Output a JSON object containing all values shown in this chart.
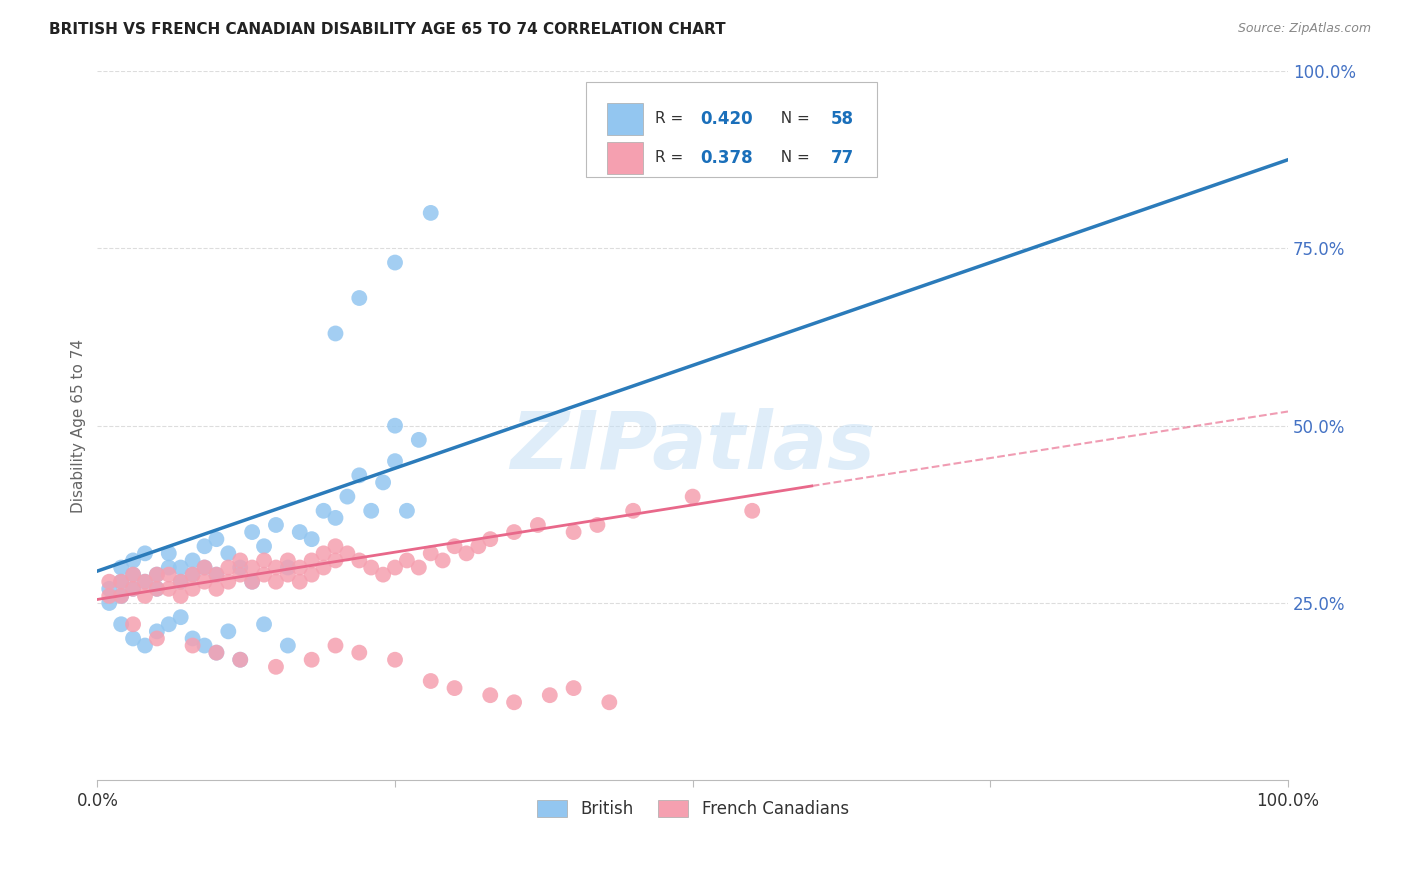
{
  "title": "BRITISH VS FRENCH CANADIAN DISABILITY AGE 65 TO 74 CORRELATION CHART",
  "source": "Source: ZipAtlas.com",
  "ylabel": "Disability Age 65 to 74",
  "R_british": 0.42,
  "N_british": 58,
  "R_french": 0.378,
  "N_french": 77,
  "color_british": "#93c6f0",
  "color_french": "#f5a0b0",
  "color_british_line": "#2b7bba",
  "color_french_line": "#e8688a",
  "watermark": "ZIPatlas",
  "british_x": [
    0.01,
    0.01,
    0.02,
    0.02,
    0.02,
    0.03,
    0.03,
    0.03,
    0.04,
    0.04,
    0.05,
    0.05,
    0.06,
    0.06,
    0.07,
    0.07,
    0.08,
    0.08,
    0.09,
    0.09,
    0.1,
    0.1,
    0.11,
    0.12,
    0.13,
    0.13,
    0.14,
    0.15,
    0.16,
    0.17,
    0.18,
    0.19,
    0.2,
    0.21,
    0.22,
    0.23,
    0.24,
    0.25,
    0.26,
    0.27,
    0.02,
    0.03,
    0.04,
    0.05,
    0.06,
    0.07,
    0.08,
    0.09,
    0.1,
    0.11,
    0.12,
    0.14,
    0.16,
    0.2,
    0.22,
    0.25,
    0.25,
    0.28
  ],
  "british_y": [
    0.25,
    0.27,
    0.28,
    0.3,
    0.26,
    0.27,
    0.29,
    0.31,
    0.28,
    0.32,
    0.27,
    0.29,
    0.3,
    0.32,
    0.28,
    0.3,
    0.29,
    0.31,
    0.3,
    0.33,
    0.29,
    0.34,
    0.32,
    0.3,
    0.35,
    0.28,
    0.33,
    0.36,
    0.3,
    0.35,
    0.34,
    0.38,
    0.37,
    0.4,
    0.43,
    0.38,
    0.42,
    0.45,
    0.38,
    0.48,
    0.22,
    0.2,
    0.19,
    0.21,
    0.22,
    0.23,
    0.2,
    0.19,
    0.18,
    0.21,
    0.17,
    0.22,
    0.19,
    0.63,
    0.68,
    0.73,
    0.5,
    0.8
  ],
  "french_x": [
    0.01,
    0.01,
    0.02,
    0.02,
    0.03,
    0.03,
    0.04,
    0.04,
    0.05,
    0.05,
    0.06,
    0.06,
    0.07,
    0.07,
    0.08,
    0.08,
    0.09,
    0.09,
    0.1,
    0.1,
    0.11,
    0.11,
    0.12,
    0.12,
    0.13,
    0.13,
    0.14,
    0.14,
    0.15,
    0.15,
    0.16,
    0.16,
    0.17,
    0.17,
    0.18,
    0.18,
    0.19,
    0.19,
    0.2,
    0.2,
    0.21,
    0.22,
    0.23,
    0.24,
    0.25,
    0.26,
    0.27,
    0.28,
    0.29,
    0.3,
    0.31,
    0.32,
    0.33,
    0.35,
    0.37,
    0.4,
    0.42,
    0.45,
    0.5,
    0.55,
    0.03,
    0.05,
    0.08,
    0.1,
    0.12,
    0.15,
    0.18,
    0.2,
    0.22,
    0.25,
    0.28,
    0.3,
    0.33,
    0.35,
    0.38,
    0.4,
    0.43
  ],
  "french_y": [
    0.26,
    0.28,
    0.26,
    0.28,
    0.27,
    0.29,
    0.26,
    0.28,
    0.27,
    0.29,
    0.27,
    0.29,
    0.26,
    0.28,
    0.27,
    0.29,
    0.28,
    0.3,
    0.27,
    0.29,
    0.28,
    0.3,
    0.29,
    0.31,
    0.28,
    0.3,
    0.29,
    0.31,
    0.28,
    0.3,
    0.29,
    0.31,
    0.28,
    0.3,
    0.29,
    0.31,
    0.3,
    0.32,
    0.31,
    0.33,
    0.32,
    0.31,
    0.3,
    0.29,
    0.3,
    0.31,
    0.3,
    0.32,
    0.31,
    0.33,
    0.32,
    0.33,
    0.34,
    0.35,
    0.36,
    0.35,
    0.36,
    0.38,
    0.4,
    0.38,
    0.22,
    0.2,
    0.19,
    0.18,
    0.17,
    0.16,
    0.17,
    0.19,
    0.18,
    0.17,
    0.14,
    0.13,
    0.12,
    0.11,
    0.12,
    0.13,
    0.11
  ],
  "british_line_x0": 0.0,
  "british_line_y0": 0.295,
  "british_line_x1": 1.0,
  "british_line_y1": 0.875,
  "french_line_x0": 0.0,
  "french_line_y0": 0.255,
  "french_line_solid_x1": 0.6,
  "french_line_solid_y1": 0.415,
  "french_line_dashed_x1": 1.0,
  "french_line_dashed_y1": 0.52,
  "xlim": [
    0.0,
    1.0
  ],
  "ylim": [
    0.0,
    1.0
  ],
  "grid_color": "#dddddd",
  "background_color": "#ffffff",
  "axis_label_color": "#4472c4",
  "title_color": "#222222",
  "source_color": "#888888"
}
